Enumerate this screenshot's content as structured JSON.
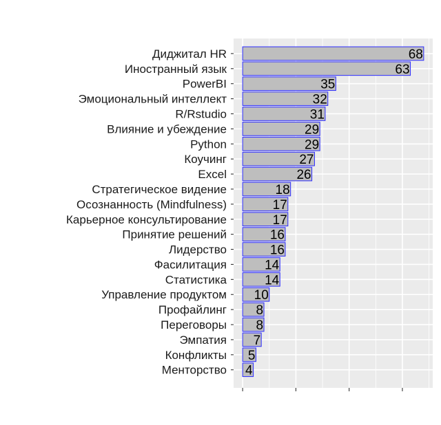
{
  "chart_data": {
    "type": "bar",
    "orientation": "horizontal",
    "title": "",
    "xlabel": "",
    "ylabel": "",
    "categories": [
      "Диджитал HR",
      "Иностранный язык",
      "PowerBI",
      "Эмоциональный интеллект",
      "R/Rstudio",
      "Влияние и убеждение",
      "Python",
      "Коучинг",
      "Excel",
      "Стратегическое видение",
      "Осознанность (Mindfulness)",
      "Карьерное консультирование",
      "Принятие решений",
      "Лидерство",
      "Фасилитация",
      "Статистика",
      "Управление продуктом",
      "Профайлинг",
      "Переговоры",
      "Эмпатия",
      "Конфликты",
      "Менторство"
    ],
    "values": [
      68,
      63,
      35,
      32,
      31,
      29,
      29,
      27,
      26,
      18,
      17,
      17,
      16,
      16,
      14,
      14,
      10,
      8,
      8,
      7,
      5,
      4
    ],
    "xlim": [
      -3.4,
      71.4
    ],
    "x_ticks": [
      0,
      20,
      40,
      60
    ],
    "x_tick_labels_shown": false,
    "grid": true,
    "bar_fill": "#bebebe",
    "bar_outline": "#2b2bff",
    "panel_background": "#ebebeb"
  }
}
